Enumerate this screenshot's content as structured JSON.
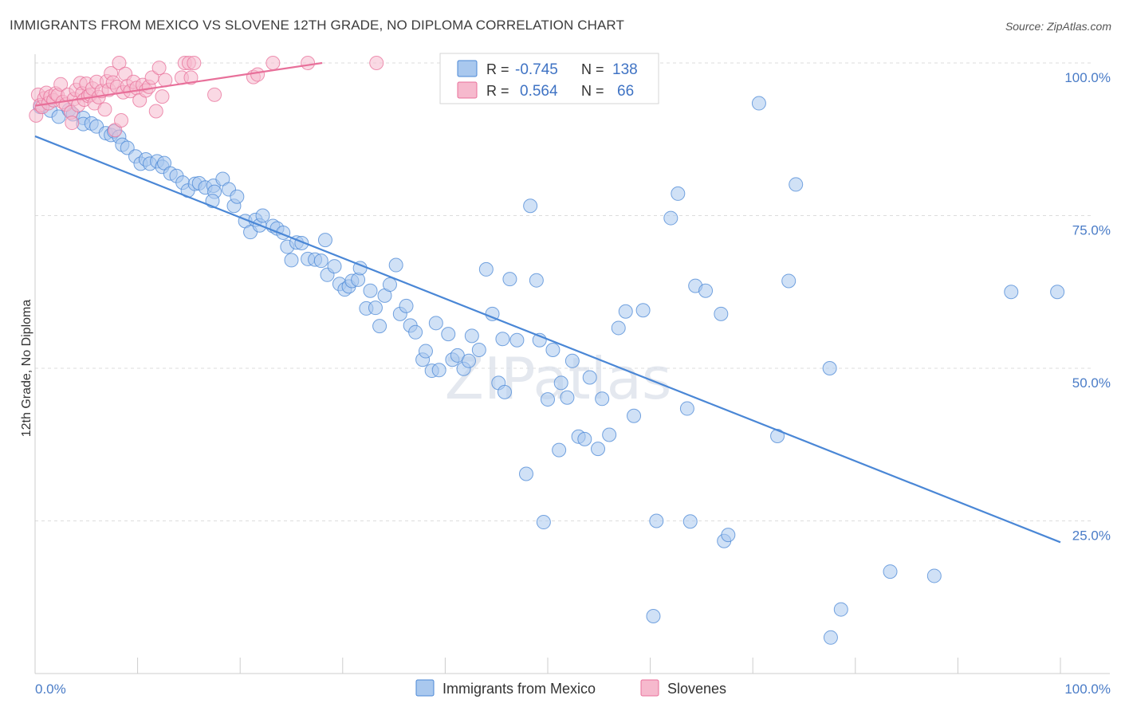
{
  "title": "IMMIGRANTS FROM MEXICO VS SLOVENE 12TH GRADE, NO DIPLOMA CORRELATION CHART",
  "source": "Source: ZipAtlas.com",
  "watermark": "ZIPatlas",
  "colors": {
    "blue": "#4a87d6",
    "blue_fill": "#a9c8ee",
    "pink": "#e8709a",
    "pink_fill": "#f6b9cd",
    "tick_text": "#4a7cc7",
    "grid": "#dddddd"
  },
  "legend_box": {
    "rows": [
      {
        "r_label": "R =",
        "r_value": "-0.745",
        "n_label": "N =",
        "n_value": "138"
      },
      {
        "r_label": "R =",
        "r_value": "0.564",
        "n_label": "N =",
        "n_value": "66"
      }
    ]
  },
  "chart_data": {
    "type": "scatter",
    "title": "IMMIGRANTS FROM MEXICO VS SLOVENE 12TH GRADE, NO DIPLOMA CORRELATION CHART",
    "xlabel": "",
    "ylabel": "12th Grade, No Diploma",
    "xlim": [
      0,
      100
    ],
    "ylim": [
      0,
      100
    ],
    "x_tick_labels": [
      "0.0%",
      "100.0%"
    ],
    "y_tick_labels": [
      "25.0%",
      "50.0%",
      "75.0%",
      "100.0%"
    ],
    "y_tick_values": [
      25,
      50,
      75,
      100
    ],
    "legend": [
      "Immigrants from Mexico",
      "Slovenes"
    ],
    "series": [
      {
        "name": "Immigrants from Mexico",
        "r": -0.745,
        "n": 138,
        "trend": [
          [
            0,
            88.0
          ],
          [
            100,
            21.5
          ]
        ],
        "points": [
          [
            0.5,
            92.8
          ],
          [
            1.5,
            92.2
          ],
          [
            2.3,
            91.2
          ],
          [
            3.3,
            92.3
          ],
          [
            3.7,
            91.6
          ],
          [
            4.7,
            91.0
          ],
          [
            4.7,
            90.0
          ],
          [
            5.5,
            90.1
          ],
          [
            6.0,
            89.6
          ],
          [
            6.9,
            88.5
          ],
          [
            7.4,
            88.2
          ],
          [
            7.7,
            88.8
          ],
          [
            8.2,
            87.9
          ],
          [
            8.5,
            86.6
          ],
          [
            9.0,
            86.1
          ],
          [
            9.8,
            84.7
          ],
          [
            10.3,
            83.5
          ],
          [
            10.8,
            84.2
          ],
          [
            11.2,
            83.5
          ],
          [
            11.9,
            83.9
          ],
          [
            12.4,
            83.0
          ],
          [
            12.6,
            83.6
          ],
          [
            13.2,
            81.9
          ],
          [
            13.8,
            81.5
          ],
          [
            14.4,
            80.4
          ],
          [
            14.9,
            79.1
          ],
          [
            15.6,
            80.2
          ],
          [
            16.0,
            80.3
          ],
          [
            16.6,
            79.6
          ],
          [
            17.4,
            79.9
          ],
          [
            17.5,
            78.9
          ],
          [
            17.3,
            77.4
          ],
          [
            18.3,
            81.0
          ],
          [
            18.9,
            79.3
          ],
          [
            19.4,
            76.6
          ],
          [
            19.7,
            78.1
          ],
          [
            20.5,
            74.1
          ],
          [
            21.0,
            72.3
          ],
          [
            21.5,
            74.3
          ],
          [
            21.9,
            73.4
          ],
          [
            22.2,
            75.0
          ],
          [
            23.2,
            73.3
          ],
          [
            23.6,
            72.9
          ],
          [
            24.2,
            72.2
          ],
          [
            24.6,
            69.9
          ],
          [
            25.0,
            67.7
          ],
          [
            25.5,
            70.6
          ],
          [
            26.0,
            70.5
          ],
          [
            26.6,
            67.9
          ],
          [
            27.3,
            67.8
          ],
          [
            27.9,
            67.6
          ],
          [
            28.3,
            71.0
          ],
          [
            28.5,
            65.3
          ],
          [
            29.2,
            66.7
          ],
          [
            29.7,
            63.8
          ],
          [
            30.2,
            62.9
          ],
          [
            30.6,
            63.4
          ],
          [
            30.9,
            64.3
          ],
          [
            31.5,
            64.5
          ],
          [
            31.7,
            66.4
          ],
          [
            32.3,
            59.8
          ],
          [
            32.7,
            62.7
          ],
          [
            33.2,
            59.9
          ],
          [
            33.6,
            56.9
          ],
          [
            34.1,
            61.9
          ],
          [
            34.6,
            63.7
          ],
          [
            35.2,
            66.9
          ],
          [
            35.6,
            58.9
          ],
          [
            36.2,
            60.2
          ],
          [
            36.6,
            57.0
          ],
          [
            37.1,
            55.9
          ],
          [
            37.8,
            51.4
          ],
          [
            38.1,
            52.8
          ],
          [
            38.7,
            49.6
          ],
          [
            39.1,
            57.4
          ],
          [
            39.4,
            49.7
          ],
          [
            40.3,
            55.6
          ],
          [
            40.7,
            51.4
          ],
          [
            41.2,
            52.1
          ],
          [
            41.8,
            49.9
          ],
          [
            42.3,
            51.2
          ],
          [
            42.6,
            55.3
          ],
          [
            43.3,
            53.0
          ],
          [
            44.0,
            66.2
          ],
          [
            44.6,
            58.9
          ],
          [
            45.2,
            47.6
          ],
          [
            45.6,
            54.8
          ],
          [
            45.8,
            46.1
          ],
          [
            46.3,
            64.6
          ],
          [
            47.0,
            54.6
          ],
          [
            47.9,
            32.7
          ],
          [
            48.3,
            76.6
          ],
          [
            48.9,
            64.4
          ],
          [
            49.2,
            54.6
          ],
          [
            49.6,
            24.8
          ],
          [
            50.0,
            44.9
          ],
          [
            50.5,
            53.0
          ],
          [
            51.1,
            36.6
          ],
          [
            51.3,
            47.6
          ],
          [
            51.9,
            45.2
          ],
          [
            52.4,
            51.2
          ],
          [
            53.0,
            38.8
          ],
          [
            53.6,
            38.4
          ],
          [
            54.1,
            48.5
          ],
          [
            54.9,
            36.8
          ],
          [
            55.3,
            45.0
          ],
          [
            56.0,
            39.1
          ],
          [
            56.9,
            56.6
          ],
          [
            57.6,
            59.3
          ],
          [
            58.4,
            42.2
          ],
          [
            59.3,
            59.5
          ],
          [
            60.3,
            9.4
          ],
          [
            60.6,
            25.0
          ],
          [
            62.0,
            74.6
          ],
          [
            62.7,
            78.6
          ],
          [
            63.6,
            43.4
          ],
          [
            63.9,
            24.9
          ],
          [
            64.4,
            63.5
          ],
          [
            65.4,
            62.7
          ],
          [
            66.9,
            58.9
          ],
          [
            67.2,
            21.7
          ],
          [
            67.6,
            22.7
          ],
          [
            70.6,
            93.4
          ],
          [
            72.4,
            38.9
          ],
          [
            73.5,
            64.3
          ],
          [
            74.2,
            80.1
          ],
          [
            77.5,
            50.0
          ],
          [
            77.6,
            5.9
          ],
          [
            78.6,
            10.5
          ],
          [
            83.4,
            16.7
          ],
          [
            87.7,
            16.0
          ],
          [
            95.2,
            62.5
          ],
          [
            99.7,
            62.5
          ]
        ]
      },
      {
        "name": "Slovenes",
        "r": 0.564,
        "n": 66,
        "trend": [
          [
            0,
            93.0
          ],
          [
            28,
            100
          ]
        ],
        "points": [
          [
            0.1,
            91.4
          ],
          [
            0.3,
            94.8
          ],
          [
            0.5,
            93.1
          ],
          [
            0.7,
            92.8
          ],
          [
            0.9,
            94.2
          ],
          [
            1.1,
            95.1
          ],
          [
            1.3,
            93.4
          ],
          [
            1.5,
            94.5
          ],
          [
            1.8,
            93.9
          ],
          [
            2.0,
            95.0
          ],
          [
            2.2,
            94.7
          ],
          [
            2.5,
            96.5
          ],
          [
            2.7,
            93.6
          ],
          [
            3.0,
            93.2
          ],
          [
            3.2,
            94.8
          ],
          [
            3.5,
            91.9
          ],
          [
            3.6,
            90.2
          ],
          [
            3.8,
            94.1
          ],
          [
            4.0,
            95.6
          ],
          [
            4.2,
            93.1
          ],
          [
            4.4,
            96.7
          ],
          [
            4.6,
            95.0
          ],
          [
            4.8,
            94.0
          ],
          [
            5.0,
            96.6
          ],
          [
            5.2,
            94.6
          ],
          [
            5.4,
            94.8
          ],
          [
            5.6,
            95.8
          ],
          [
            5.8,
            93.4
          ],
          [
            6.0,
            96.9
          ],
          [
            6.2,
            94.4
          ],
          [
            6.5,
            95.4
          ],
          [
            6.8,
            92.4
          ],
          [
            7.0,
            97.0
          ],
          [
            7.2,
            95.6
          ],
          [
            7.4,
            98.3
          ],
          [
            7.6,
            96.8
          ],
          [
            7.8,
            89.0
          ],
          [
            8.0,
            96.1
          ],
          [
            8.2,
            100.0
          ],
          [
            8.4,
            90.6
          ],
          [
            8.6,
            95.2
          ],
          [
            8.8,
            98.2
          ],
          [
            9.0,
            96.2
          ],
          [
            9.3,
            95.4
          ],
          [
            9.6,
            96.9
          ],
          [
            9.9,
            95.9
          ],
          [
            10.2,
            93.9
          ],
          [
            10.5,
            96.4
          ],
          [
            10.8,
            95.5
          ],
          [
            11.1,
            96.1
          ],
          [
            11.4,
            97.6
          ],
          [
            11.8,
            92.1
          ],
          [
            12.1,
            99.2
          ],
          [
            12.4,
            94.5
          ],
          [
            12.7,
            97.2
          ],
          [
            14.3,
            97.6
          ],
          [
            14.6,
            100.0
          ],
          [
            15.0,
            100.0
          ],
          [
            15.2,
            97.6
          ],
          [
            15.5,
            100.0
          ],
          [
            17.5,
            94.8
          ],
          [
            21.3,
            97.7
          ],
          [
            21.7,
            98.1
          ],
          [
            23.2,
            100.0
          ],
          [
            26.6,
            100.0
          ],
          [
            33.3,
            100.0
          ]
        ]
      }
    ]
  }
}
